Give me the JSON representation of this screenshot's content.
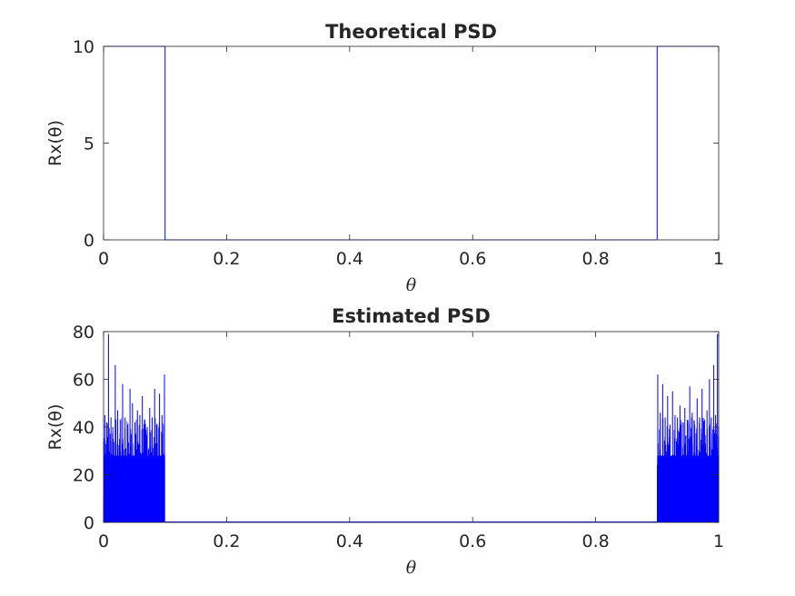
{
  "chart_data": [
    {
      "type": "line",
      "title": "Theoretical PSD",
      "xlabel": "θ",
      "ylabel": "Rx(θ)",
      "xlim": [
        0,
        1
      ],
      "ylim": [
        0,
        10
      ],
      "xticks": [
        0,
        0.2,
        0.4,
        0.6,
        0.8,
        1
      ],
      "xtick_labels": [
        "0",
        "0.2",
        "0.4",
        "0.6",
        "0.8",
        "1"
      ],
      "yticks": [
        0,
        5,
        10
      ],
      "ytick_labels": [
        "0",
        "5",
        "10"
      ],
      "grid": false,
      "color": "#0000ff",
      "series": [
        {
          "x": [
            0,
            0.099,
            0.099,
            0.1,
            0.1,
            0.899,
            0.9,
            0.9,
            1
          ],
          "y": [
            10,
            10,
            10,
            10,
            0,
            0,
            0,
            10,
            10
          ]
        }
      ]
    },
    {
      "type": "line",
      "title": "Estimated PSD",
      "xlabel": "θ",
      "ylabel": "Rx(θ)",
      "xlim": [
        0,
        1
      ],
      "ylim": [
        0,
        80
      ],
      "xticks": [
        0,
        0.2,
        0.4,
        0.6,
        0.8,
        1
      ],
      "xtick_labels": [
        "0",
        "0.2",
        "0.4",
        "0.6",
        "0.8",
        "1"
      ],
      "yticks": [
        0,
        20,
        40,
        60,
        80
      ],
      "ytick_labels": [
        "0",
        "20",
        "40",
        "60",
        "80"
      ],
      "grid": false,
      "color": "#0000ff",
      "band_region_1": [
        0,
        0.1
      ],
      "band_region_2": [
        0.9,
        1
      ],
      "series": [
        {
          "x": [
            0,
            0.002,
            0.005,
            0.008,
            0.012,
            0.015,
            0.019,
            0.023,
            0.027,
            0.031,
            0.035,
            0.039,
            0.043,
            0.047,
            0.051,
            0.055,
            0.059,
            0.063,
            0.067,
            0.071,
            0.075,
            0.079,
            0.083,
            0.087,
            0.091,
            0.095,
            0.099,
            0.1,
            0.9,
            0.901,
            0.905,
            0.909,
            0.913,
            0.917,
            0.921,
            0.925,
            0.929,
            0.933,
            0.937,
            0.941,
            0.945,
            0.949,
            0.953,
            0.957,
            0.961,
            0.965,
            0.969,
            0.973,
            0.977,
            0.981,
            0.985,
            0.988,
            0.992,
            0.995,
            0.998,
            1
          ],
          "y": [
            10,
            45,
            42,
            79,
            44,
            40,
            66,
            47,
            43,
            58,
            44,
            41,
            56,
            50,
            42,
            47,
            45,
            53,
            43,
            40,
            48,
            44,
            56,
            41,
            54,
            45,
            62,
            0,
            0,
            62,
            46,
            58,
            44,
            53,
            41,
            55,
            45,
            44,
            49,
            42,
            48,
            43,
            57,
            46,
            41,
            52,
            44,
            56,
            43,
            47,
            60,
            44,
            66,
            45,
            79,
            40
          ]
        }
      ]
    }
  ]
}
